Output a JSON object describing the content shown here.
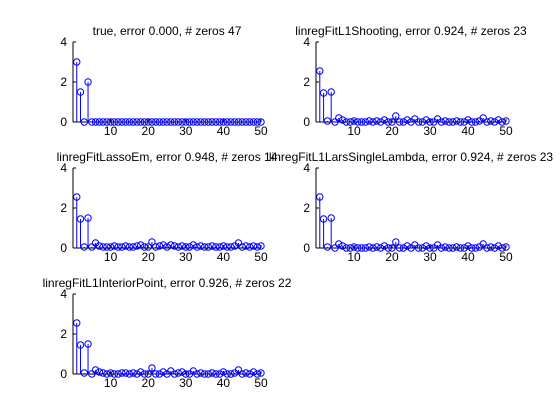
{
  "colors": {
    "stem": "#0000ff",
    "axis": "#000000",
    "background": "#ffffff"
  },
  "chart_data": [
    {
      "type": "stem",
      "title": "true, error 0.000, # zeros 47",
      "xlim": [
        0,
        50
      ],
      "ylim": [
        0,
        4
      ],
      "xticks": [
        "10",
        "20",
        "30",
        "40",
        "50"
      ],
      "yticks": [
        "0",
        "2",
        "4"
      ],
      "x": [
        1,
        2,
        3,
        4,
        5,
        6,
        7,
        8,
        9,
        10,
        11,
        12,
        13,
        14,
        15,
        16,
        17,
        18,
        19,
        20,
        21,
        22,
        23,
        24,
        25,
        26,
        27,
        28,
        29,
        30,
        31,
        32,
        33,
        34,
        35,
        36,
        37,
        38,
        39,
        40,
        41,
        42,
        43,
        44,
        45,
        46,
        47,
        48,
        49,
        50
      ],
      "values": [
        3.0,
        1.5,
        0,
        2.0,
        0,
        0,
        0,
        0,
        0,
        0,
        0,
        0,
        0,
        0,
        0,
        0,
        0,
        0,
        0,
        0,
        0,
        0,
        0,
        0,
        0,
        0,
        0,
        0,
        0,
        0,
        0,
        0,
        0,
        0,
        0,
        0,
        0,
        0,
        0,
        0,
        0,
        0,
        0,
        0,
        0,
        0,
        0,
        0,
        0,
        0
      ]
    },
    {
      "type": "stem",
      "title": "linregFitL1Shooting, error 0.924, # zeros 23",
      "xlim": [
        0,
        50
      ],
      "ylim": [
        0,
        4
      ],
      "xticks": [
        "10",
        "20",
        "30",
        "40",
        "50"
      ],
      "yticks": [
        "0",
        "2",
        "4"
      ],
      "x": [
        1,
        2,
        3,
        4,
        5,
        6,
        7,
        8,
        9,
        10,
        11,
        12,
        13,
        14,
        15,
        16,
        17,
        18,
        19,
        20,
        21,
        22,
        23,
        24,
        25,
        26,
        27,
        28,
        29,
        30,
        31,
        32,
        33,
        34,
        35,
        36,
        37,
        38,
        39,
        40,
        41,
        42,
        43,
        44,
        45,
        46,
        47,
        48,
        49,
        50
      ],
      "values": [
        2.55,
        1.45,
        0.05,
        1.5,
        0,
        0.2,
        0.1,
        0,
        0,
        0.05,
        0,
        0,
        0,
        0.05,
        0,
        0.05,
        0,
        0.1,
        0,
        0,
        0.3,
        0,
        0,
        0.1,
        0,
        0.15,
        0,
        0,
        0.1,
        0,
        0,
        0.15,
        0,
        0.05,
        0,
        0,
        0.05,
        0,
        0,
        0.1,
        0,
        0,
        0.05,
        0.2,
        0,
        0.05,
        0,
        0.1,
        0,
        0.05
      ]
    },
    {
      "type": "stem",
      "title": "linregFitLassoEm, error 0.948, # zeros 14",
      "xlim": [
        0,
        50
      ],
      "ylim": [
        0,
        4
      ],
      "xticks": [
        "10",
        "20",
        "30",
        "40",
        "50"
      ],
      "yticks": [
        "0",
        "2",
        "4"
      ],
      "x": [
        1,
        2,
        3,
        4,
        5,
        6,
        7,
        8,
        9,
        10,
        11,
        12,
        13,
        14,
        15,
        16,
        17,
        18,
        19,
        20,
        21,
        22,
        23,
        24,
        25,
        26,
        27,
        28,
        29,
        30,
        31,
        32,
        33,
        34,
        35,
        36,
        37,
        38,
        39,
        40,
        41,
        42,
        43,
        44,
        45,
        46,
        47,
        48,
        49,
        50
      ],
      "values": [
        2.55,
        1.45,
        0.05,
        1.5,
        0.05,
        0.25,
        0.1,
        0.05,
        0.05,
        0.05,
        0.1,
        0.05,
        0.05,
        0.1,
        0.05,
        0.05,
        0.1,
        0.15,
        0.05,
        0.05,
        0.3,
        0.05,
        0.1,
        0.15,
        0.05,
        0.15,
        0.1,
        0.05,
        0.1,
        0.05,
        0.05,
        0.15,
        0.05,
        0.1,
        0.05,
        0.05,
        0.1,
        0.05,
        0.05,
        0.1,
        0.05,
        0.05,
        0.1,
        0.25,
        0.05,
        0.1,
        0.05,
        0.1,
        0.05,
        0.1
      ]
    },
    {
      "type": "stem",
      "title": "linregFitL1LarsSingleLambda, error 0.924, # zeros 23",
      "xlim": [
        0,
        50
      ],
      "ylim": [
        0,
        4
      ],
      "xticks": [
        "10",
        "20",
        "30",
        "40",
        "50"
      ],
      "yticks": [
        "0",
        "2",
        "4"
      ],
      "x": [
        1,
        2,
        3,
        4,
        5,
        6,
        7,
        8,
        9,
        10,
        11,
        12,
        13,
        14,
        15,
        16,
        17,
        18,
        19,
        20,
        21,
        22,
        23,
        24,
        25,
        26,
        27,
        28,
        29,
        30,
        31,
        32,
        33,
        34,
        35,
        36,
        37,
        38,
        39,
        40,
        41,
        42,
        43,
        44,
        45,
        46,
        47,
        48,
        49,
        50
      ],
      "values": [
        2.55,
        1.45,
        0.05,
        1.5,
        0,
        0.2,
        0.1,
        0,
        0,
        0.05,
        0,
        0,
        0,
        0.05,
        0,
        0.05,
        0,
        0.1,
        0,
        0,
        0.3,
        0,
        0,
        0.1,
        0,
        0.15,
        0,
        0,
        0.1,
        0,
        0,
        0.15,
        0,
        0.05,
        0,
        0,
        0.05,
        0,
        0,
        0.1,
        0,
        0,
        0.05,
        0.2,
        0,
        0.05,
        0,
        0.1,
        0,
        0.05
      ]
    },
    {
      "type": "stem",
      "title": "linregFitL1InteriorPoint, error 0.926, # zeros 22",
      "xlim": [
        0,
        50
      ],
      "ylim": [
        0,
        4
      ],
      "xticks": [
        "10",
        "20",
        "30",
        "40",
        "50"
      ],
      "yticks": [
        "0",
        "2",
        "4"
      ],
      "x": [
        1,
        2,
        3,
        4,
        5,
        6,
        7,
        8,
        9,
        10,
        11,
        12,
        13,
        14,
        15,
        16,
        17,
        18,
        19,
        20,
        21,
        22,
        23,
        24,
        25,
        26,
        27,
        28,
        29,
        30,
        31,
        32,
        33,
        34,
        35,
        36,
        37,
        38,
        39,
        40,
        41,
        42,
        43,
        44,
        45,
        46,
        47,
        48,
        49,
        50
      ],
      "values": [
        2.55,
        1.45,
        0.05,
        1.5,
        0,
        0.2,
        0.1,
        0.05,
        0,
        0.05,
        0,
        0,
        0.05,
        0.05,
        0,
        0.05,
        0,
        0.1,
        0,
        0,
        0.3,
        0,
        0,
        0.1,
        0,
        0.15,
        0,
        0.05,
        0.1,
        0,
        0,
        0.15,
        0,
        0.05,
        0,
        0,
        0.05,
        0,
        0,
        0.1,
        0,
        0,
        0.05,
        0.2,
        0,
        0.05,
        0,
        0.1,
        0,
        0.05
      ]
    }
  ]
}
